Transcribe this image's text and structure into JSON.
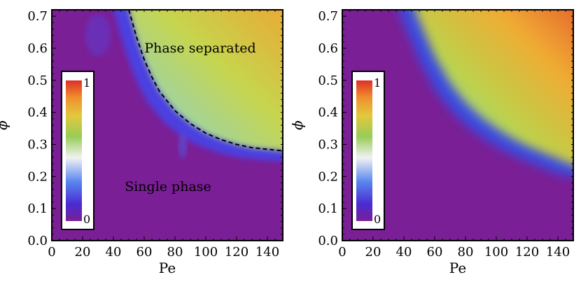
{
  "chart_data": [
    {
      "type": "heatmap",
      "panel": "left",
      "xlabel": "Pe",
      "ylabel": "ϕ",
      "xlim": [
        0,
        150
      ],
      "ylim": [
        0.0,
        0.72
      ],
      "xticks": [
        "0",
        "20",
        "40",
        "60",
        "80",
        "100",
        "120",
        "140"
      ],
      "yticks": [
        "0.0",
        "0.1",
        "0.2",
        "0.3",
        "0.4",
        "0.5",
        "0.6",
        "0.7"
      ],
      "colorbar": {
        "min_label": "0",
        "max_label": "1"
      },
      "annotations": {
        "upper": "Phase separated",
        "lower": "Single phase"
      },
      "boundary_curve": {
        "style": "dashed",
        "x": [
          50,
          55,
          60,
          65,
          70,
          80,
          90,
          100,
          110,
          120,
          130,
          140,
          150
        ],
        "y": [
          0.72,
          0.635,
          0.565,
          0.51,
          0.465,
          0.405,
          0.365,
          0.335,
          0.315,
          0.3,
          0.29,
          0.285,
          0.28
        ]
      },
      "field_description_values": {
        "max_order_parameter": 0.8,
        "plateau_phi_top": 0.72
      }
    },
    {
      "type": "heatmap",
      "panel": "right",
      "xlabel": "Pe",
      "ylabel": "ϕ",
      "xlim": [
        0,
        150
      ],
      "ylim": [
        0.0,
        0.72
      ],
      "xticks": [
        "0",
        "20",
        "40",
        "60",
        "80",
        "100",
        "120",
        "140"
      ],
      "yticks": [
        "0.0",
        "0.1",
        "0.2",
        "0.3",
        "0.4",
        "0.5",
        "0.6",
        "0.7"
      ],
      "colorbar": {
        "min_label": "0",
        "max_label": "1"
      },
      "boundary_curve": {
        "style": "none",
        "x": [
          47,
          55,
          60,
          70,
          80,
          90,
          100,
          110,
          120,
          130,
          140,
          150
        ],
        "y": [
          0.72,
          0.63,
          0.575,
          0.49,
          0.43,
          0.385,
          0.35,
          0.32,
          0.295,
          0.275,
          0.255,
          0.235
        ]
      }
    }
  ],
  "colors": {
    "purple": "#7a1f96",
    "blue": "#3a4be0",
    "white": "#f2f2f2",
    "green": "#a5cf45",
    "yellow": "#e8c73c",
    "orange": "#ef8b2c",
    "red": "#de2e28"
  }
}
